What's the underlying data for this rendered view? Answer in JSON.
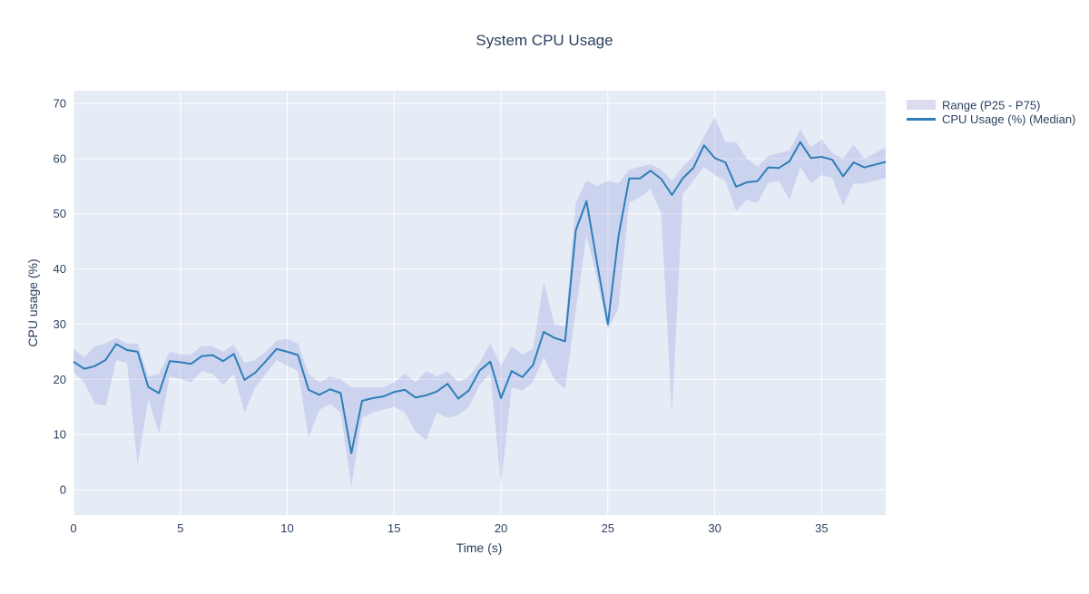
{
  "chart_data": {
    "type": "line",
    "title": "System CPU Usage",
    "xlabel": "Time (s)",
    "ylabel": "CPU usage (%)",
    "xlim": [
      0,
      38
    ],
    "ylim": [
      -4.6,
      72.3
    ],
    "x_ticks": [
      0,
      5,
      10,
      15,
      20,
      25,
      30,
      35
    ],
    "y_ticks": [
      0,
      10,
      20,
      30,
      40,
      50,
      60,
      70
    ],
    "grid": true,
    "legend_position": "top-right-outside",
    "x": [
      0,
      0.5,
      1,
      1.5,
      2,
      2.5,
      3,
      3.5,
      4,
      4.5,
      5,
      5.5,
      6,
      6.5,
      7,
      7.5,
      8,
      8.5,
      9,
      9.5,
      10,
      10.5,
      11,
      11.5,
      12,
      12.5,
      13,
      13.5,
      14,
      14.5,
      15,
      15.5,
      16,
      16.5,
      17,
      17.5,
      18,
      18.5,
      19,
      19.5,
      20,
      20.5,
      21,
      21.5,
      22,
      22.5,
      23,
      23.5,
      24,
      24.5,
      25,
      25.5,
      26,
      26.5,
      27,
      27.5,
      28,
      28.5,
      29,
      29.5,
      30,
      30.5,
      31,
      31.5,
      32,
      32.5,
      33,
      33.5,
      34,
      34.5,
      35,
      35.5,
      36,
      36.5,
      37,
      37.5,
      38
    ],
    "series": [
      {
        "name": "CPU Usage (%) (Median)",
        "values": [
          23.2,
          21.9,
          22.4,
          23.5,
          26.4,
          25.3,
          25.0,
          18.6,
          17.5,
          23.3,
          23.1,
          22.8,
          24.2,
          24.4,
          23.3,
          24.6,
          19.9,
          21.2,
          23.3,
          25.5,
          25.0,
          24.4,
          18.1,
          17.2,
          18.2,
          17.5,
          6.6,
          16.1,
          16.6,
          16.9,
          17.7,
          18.1,
          16.7,
          17.1,
          17.8,
          19.2,
          16.5,
          18.0,
          21.6,
          23.2,
          16.6,
          21.5,
          20.4,
          22.6,
          28.6,
          27.5,
          26.9,
          47.0,
          52.3,
          41.0,
          30.0,
          46.0,
          56.4,
          56.4,
          57.8,
          56.3,
          53.4,
          56.4,
          58.3,
          62.4,
          60.1,
          59.3,
          54.9,
          55.7,
          55.9,
          58.4,
          58.3,
          59.5,
          63.0,
          60.1,
          60.3,
          59.8,
          56.8,
          59.3,
          58.4,
          58.9,
          59.4
        ]
      }
    ],
    "band": {
      "name": "Range (P25 - P75)",
      "lower": [
        21.3,
        19.5,
        15.6,
        15.2,
        23.5,
        23.0,
        4.5,
        16.5,
        10.2,
        20.5,
        20.0,
        19.5,
        21.5,
        21.0,
        19.0,
        21.0,
        14.0,
        18.5,
        21.0,
        23.5,
        22.5,
        21.5,
        9.4,
        14.5,
        15.5,
        14.0,
        0.6,
        13.0,
        14.0,
        14.5,
        15.0,
        14.0,
        10.5,
        9.0,
        14.0,
        13.0,
        13.5,
        15.0,
        19.0,
        21.0,
        1.0,
        18.5,
        18.0,
        19.5,
        24.0,
        20.0,
        18.2,
        32.5,
        46.0,
        38.0,
        29.0,
        33.0,
        52.0,
        53.0,
        54.5,
        50.0,
        13.5,
        53.5,
        56.0,
        58.5,
        57.0,
        56.0,
        50.5,
        52.5,
        52.0,
        55.5,
        56.0,
        52.5,
        58.5,
        55.5,
        57.0,
        56.5,
        51.5,
        55.5,
        55.5,
        56.0,
        56.5
      ],
      "upper": [
        25.5,
        24.0,
        26.0,
        26.5,
        27.5,
        26.5,
        26.5,
        20.5,
        21.0,
        25.0,
        24.5,
        24.5,
        26.0,
        26.0,
        25.0,
        26.3,
        23.0,
        23.5,
        25.0,
        27.0,
        27.3,
        26.5,
        21.0,
        19.5,
        20.5,
        20.0,
        18.5,
        18.5,
        18.5,
        18.5,
        19.5,
        21.0,
        19.5,
        21.5,
        20.5,
        21.5,
        19.5,
        20.5,
        23.0,
        26.5,
        22.5,
        26.0,
        24.5,
        25.5,
        37.7,
        30.0,
        29.5,
        52.0,
        56.0,
        55.0,
        56.0,
        55.5,
        58.0,
        58.5,
        59.0,
        58.0,
        56.0,
        58.5,
        60.5,
        64.0,
        67.5,
        63.0,
        63.0,
        60.0,
        58.5,
        60.5,
        61.0,
        61.5,
        65.3,
        62.0,
        63.5,
        61.0,
        60.0,
        62.5,
        60.0,
        61.0,
        62.0
      ]
    }
  },
  "legend": {
    "items": [
      {
        "label": "Range (P25 - P75)",
        "swatch": "band"
      },
      {
        "label": "CPU Usage (%) (Median)",
        "swatch": "line"
      }
    ]
  },
  "colors": {
    "text": "#2a3f5f",
    "plot_bg": "#e5ecf6",
    "grid": "#ffffff",
    "median_line": "#2e7eb8",
    "band_fill": "rgba(120,125,210,0.22)",
    "band_swatch": "#dbdcf0"
  }
}
